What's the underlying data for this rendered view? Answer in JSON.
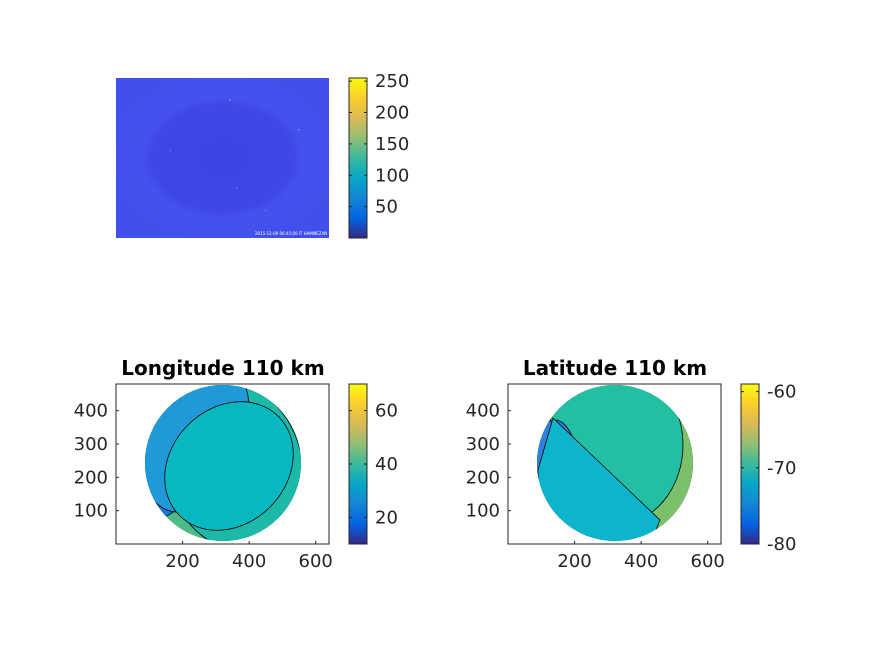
{
  "colors": {
    "parula": [
      "#352a87",
      "#0363e1",
      "#1485d4",
      "#06a7c6",
      "#38b99e",
      "#92bf73",
      "#d9ba56",
      "#fcce2e",
      "#f9fb0e"
    ],
    "axis": "#262626",
    "edge": "#000000"
  },
  "chart_data": [
    {
      "type": "heatmap",
      "id": "raw-image",
      "title": "",
      "description_type": "image",
      "fill_level": 42,
      "overlay_text": "2015-12-09 06:45:00 IT HAMMEZAN",
      "colorbar": {
        "clim": [
          0,
          255
        ],
        "ticks": [
          50,
          100,
          150,
          200,
          250
        ]
      }
    },
    {
      "type": "heatmap",
      "id": "longitude",
      "title": "Longitude 110 km",
      "xlim": [
        0,
        640
      ],
      "ylim": [
        0,
        480
      ],
      "xticks": [
        200,
        400,
        600
      ],
      "yticks": [
        100,
        200,
        300,
        400
      ],
      "colorbar": {
        "clim": [
          10,
          70
        ],
        "ticks": [
          20,
          40,
          60
        ]
      },
      "regions_low_to_high": [
        25,
        33,
        38,
        42,
        47
      ],
      "disc_center": [
        312,
        235
      ],
      "disc_radius": 152
    },
    {
      "type": "heatmap",
      "id": "latitude",
      "title": "Latitude 110 km",
      "xlim": [
        0,
        640
      ],
      "ylim": [
        0,
        480
      ],
      "xticks": [
        200,
        400,
        600
      ],
      "yticks": [
        100,
        200,
        300,
        400
      ],
      "colorbar": {
        "clim": [
          -80,
          -59
        ],
        "ticks": [
          -60,
          -70,
          -80
        ]
      },
      "regions": [
        -74,
        -73,
        -71,
        -69,
        -67,
        -66,
        -64
      ]
    }
  ]
}
